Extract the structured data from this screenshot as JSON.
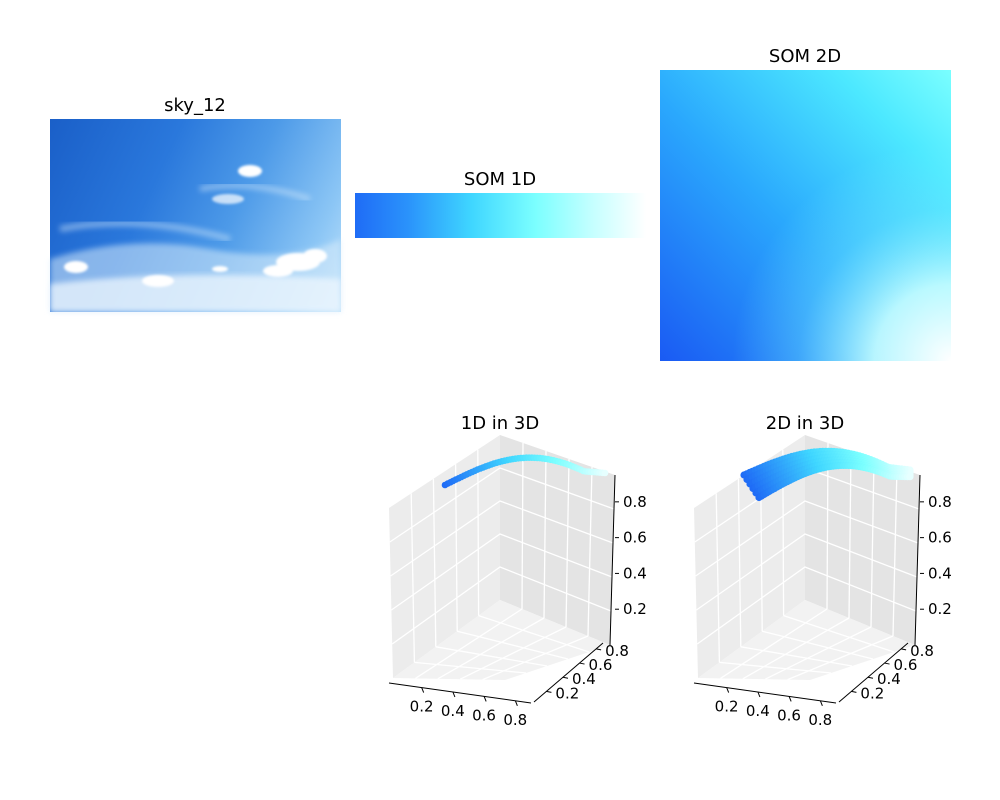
{
  "panels": {
    "image_title": "sky_12",
    "som1d_title": "SOM 1D",
    "som2d_title": "SOM 2D",
    "plot1_title": "1D in 3D",
    "plot2_title": "2D in 3D"
  },
  "colors": {
    "som_low": "#1f6cf6",
    "som_mid": "#3fd6ff",
    "som_high": "#ffffff",
    "sky_deep": "#1a5fc8",
    "sky_light": "#bfe2fb"
  },
  "chart_data": [
    {
      "type": "scatter",
      "title": "1D in 3D",
      "xticks": [
        "0.2",
        "0.4",
        "0.6",
        "0.8"
      ],
      "yticks": [
        "0.2",
        "0.4",
        "0.6",
        "0.8"
      ],
      "zticks": [
        "0.2",
        "0.4",
        "0.6",
        "0.8"
      ],
      "xlim": [
        0,
        1
      ],
      "ylim": [
        0,
        1
      ],
      "zlim": [
        0,
        1
      ],
      "grid": true
    },
    {
      "type": "scatter",
      "title": "2D in 3D",
      "xticks": [
        "0.2",
        "0.4",
        "0.6",
        "0.8"
      ],
      "yticks": [
        "0.2",
        "0.4",
        "0.6",
        "0.8"
      ],
      "zticks": [
        "0.2",
        "0.4",
        "0.6",
        "0.8"
      ],
      "xlim": [
        0,
        1
      ],
      "ylim": [
        0,
        1
      ],
      "zlim": [
        0,
        1
      ],
      "grid": true
    }
  ]
}
